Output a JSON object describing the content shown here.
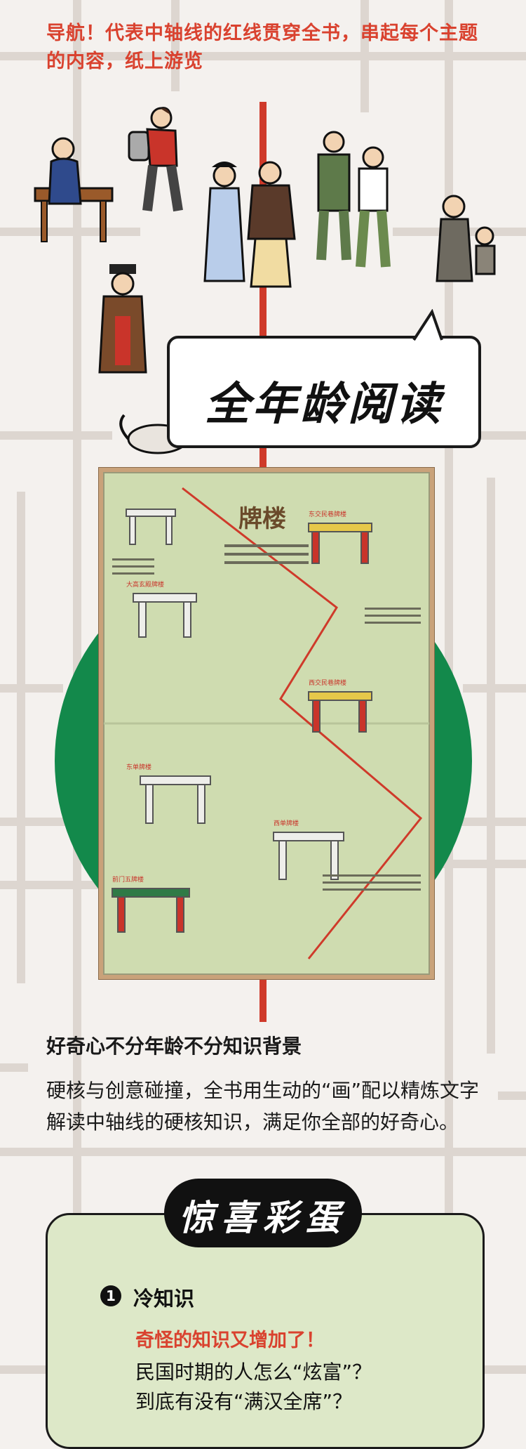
{
  "intro": {
    "line1": "导航！代表中轴线的红线贯穿全书，串起每个主题",
    "line2": "的内容，纸上游览"
  },
  "bubble": {
    "title": "全年龄阅读"
  },
  "book": {
    "title": "牌楼",
    "labels": [
      "东交民巷牌楼",
      "大高玄殿牌楼",
      "西交民巷牌楼",
      "东单牌楼",
      "西单牌楼",
      "前门五牌楼"
    ]
  },
  "section": {
    "heading": "好奇心不分年龄不分知识背景",
    "body": "硬核与创意碰撞，全书用生动的“画”配以精炼文字解读中轴线的硬核知识，满足你全部的好奇心。"
  },
  "surprise": {
    "title": "惊喜彩蛋",
    "item_number": "1",
    "item_title": "冷知识",
    "item_subtitle": "奇怪的知识又增加了！",
    "item_lines": [
      "民国时期的人怎么“炫富”？",
      "到底有没有“满汉全席”？"
    ]
  },
  "colors": {
    "accent_red": "#d9422f",
    "green": "#13894b",
    "card_green": "#dde8c8"
  }
}
